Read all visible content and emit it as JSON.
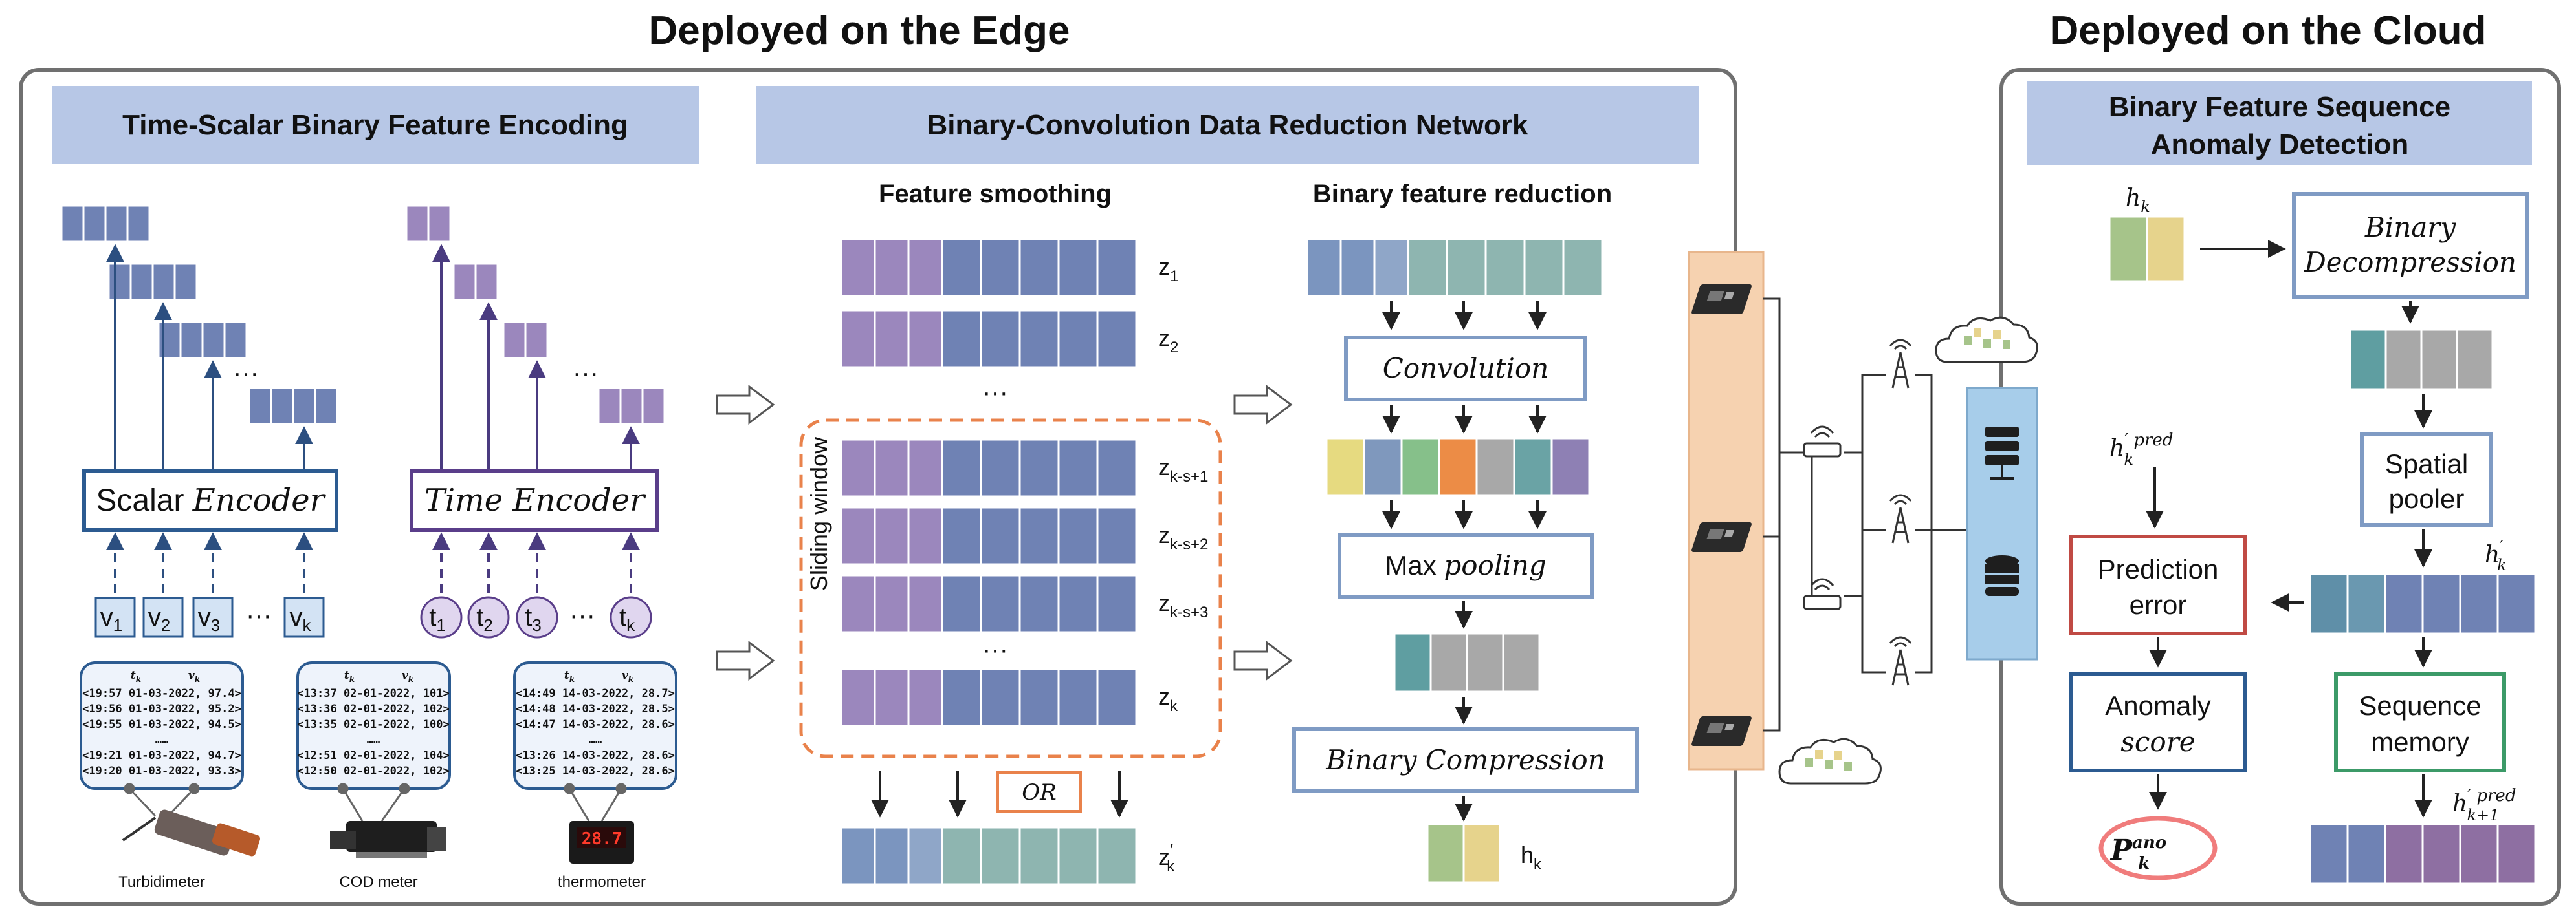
{
  "edge": {
    "title": "Deployed on the Edge",
    "section1": {
      "header": "Time-Scalar Binary Feature Encoding",
      "scalar_encoder": {
        "prefix": "Scalar ",
        "word": "Encoder"
      },
      "time_encoder": "Time Encoder",
      "value_inputs": [
        {
          "base": "v",
          "sub": "1"
        },
        {
          "base": "v",
          "sub": "2"
        },
        {
          "base": "v",
          "sub": "3"
        },
        {
          "base": "v",
          "sub": "k"
        }
      ],
      "time_inputs": [
        {
          "base": "t",
          "sub": "1"
        },
        {
          "base": "t",
          "sub": "2"
        },
        {
          "base": "t",
          "sub": "3"
        },
        {
          "base": "t",
          "sub": "k"
        }
      ],
      "ellipsis": "···",
      "devices": [
        {
          "name": "Turbidimeter",
          "col_t": "tk",
          "col_v": "vk",
          "rows": [
            "<19:57 01-03-2022, 97.4>",
            "<19:56 01-03-2022, 95.2>",
            "<19:55 01-03-2022, 94.5>",
            "……",
            "<19:21 01-03-2022, 94.7>",
            "<19:20 01-03-2022, 93.3>"
          ]
        },
        {
          "name": "COD meter",
          "col_t": "tk",
          "col_v": "vk",
          "rows": [
            "<13:37 02-01-2022, 101>",
            "<13:36 02-01-2022, 102>",
            "<13:35 02-01-2022, 100>",
            "……",
            "<12:51 02-01-2022, 104>",
            "<12:50 02-01-2022, 102>"
          ]
        },
        {
          "name": "thermometer",
          "col_t": "tk",
          "col_v": "vk",
          "rows": [
            "<14:49 14-03-2022, 28.7>",
            "<14:48 14-03-2022, 28.5>",
            "<14:47 14-03-2022, 28.6>",
            "……",
            "<13:26 14-03-2022, 28.6>",
            "<13:25 14-03-2022, 28.6>"
          ],
          "display": "28.7"
        }
      ]
    },
    "section2": {
      "header": "Binary-Convolution Data Reduction Network",
      "smoothing_title": "Feature smoothing",
      "reduction_title": "Binary feature reduction",
      "z_labels": [
        {
          "base": "z",
          "sub": "1"
        },
        {
          "base": "z",
          "sub": "2"
        },
        {
          "base": "z",
          "sub": "k-s+1"
        },
        {
          "base": "z",
          "sub": "k-s+2"
        },
        {
          "base": "z",
          "sub": "k-s+3"
        },
        {
          "base": "z",
          "sub": "k"
        }
      ],
      "sliding_window": "Sliding window",
      "or_label": "OR",
      "z_prime": {
        "base": "z",
        "sub": "k",
        "prime": "′"
      },
      "convolution": "Convolution",
      "max_pooling": {
        "prefix": "Max ",
        "word": "pooling"
      },
      "binary_compression": "Binary Compression",
      "h_out": {
        "base": "h",
        "sub": "k"
      },
      "ellipsis": "···"
    }
  },
  "cloud": {
    "title": "Deployed on the Cloud",
    "header_line1": "Binary Feature Sequence",
    "header_line2": "Anomaly Detection",
    "hk_in": {
      "base": "h",
      "sub": "k"
    },
    "decompress_line1": "Binary",
    "decompress_line2": "Decompression",
    "spatial_line1": "Spatial",
    "spatial_line2": "pooler",
    "pred_label": {
      "base": "h",
      "sup": "′ pred",
      "sub": "k"
    },
    "prediction_line1": "Prediction",
    "prediction_line2": "error",
    "hk_prime": {
      "base": "h",
      "sup": "′",
      "sub": "k"
    },
    "anomaly_line1": "Anomaly",
    "anomaly_line2": "score",
    "sequence_line1": "Sequence",
    "sequence_line2": "memory",
    "next_pred": {
      "base": "h",
      "sup": "′ pred",
      "sub": "k+1"
    },
    "p_ano": {
      "base": "P",
      "sup": "ano",
      "sub": "k"
    }
  },
  "colors": {
    "blue": "#6f82b4",
    "purple": "#9b87bd",
    "header_bg": "#b7c7e6",
    "edge_band": "#f6d2b0",
    "server": "#a7cdea",
    "alert": "#f07c7c"
  }
}
